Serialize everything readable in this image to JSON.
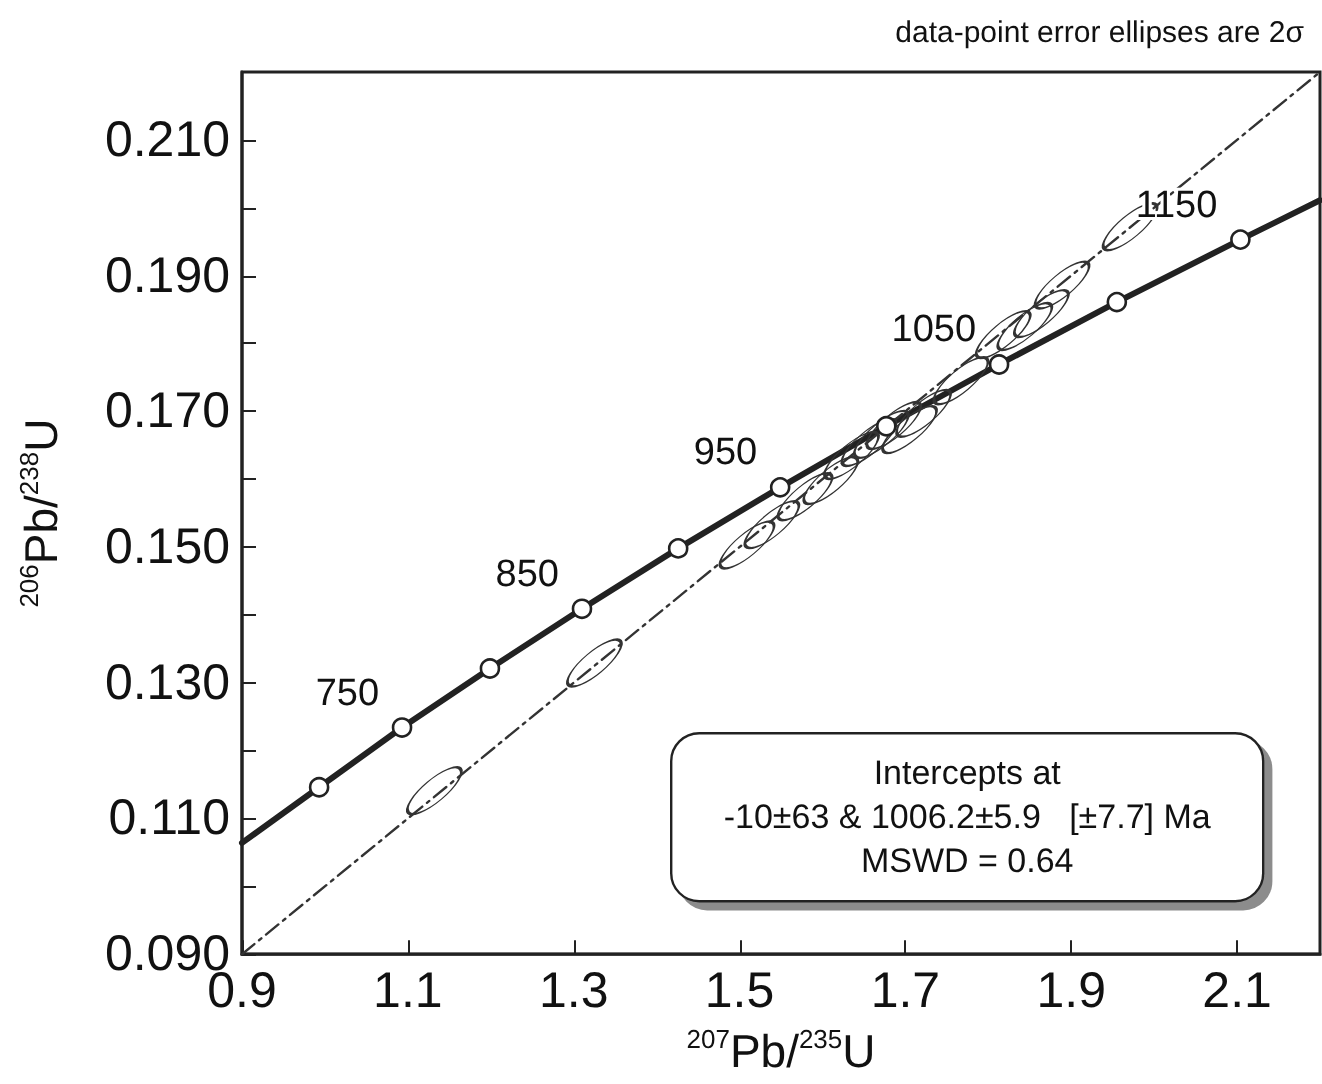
{
  "chart_data": {
    "type": "line",
    "xlabel": "$^{207}$Pb/$^{235}$U",
    "ylabel": "$^{206}$Pb/$^{238}$U",
    "annotations": [
      "data-point error ellipses are 2σ",
      "Intercepts at\n-10±63 & 1006.2±5.9   [±7.7] Ma\nMSWD = 0.64",
      {
        "text": "750",
        "x": 1.093,
        "y": 0.1234
      },
      {
        "text": "850",
        "x": 1.31,
        "y": 0.1409
      },
      {
        "text": "950",
        "x": 1.549,
        "y": 0.1588
      },
      {
        "text": "1050",
        "x": 1.813,
        "y": 0.1769
      },
      {
        "text": "1150",
        "x": 2.104,
        "y": 0.1953
      }
    ],
    "xlim": [
      0.9,
      2.2
    ],
    "xticks": [
      0.9,
      1.1,
      1.3,
      1.5,
      1.7,
      1.9,
      2.1
    ],
    "ylim": [
      0.09,
      0.22
    ],
    "yticks": [
      {
        "value": 0.09,
        "label": "0.090"
      },
      {
        "value": 0.1,
        "label": null
      },
      {
        "value": 0.11,
        "label": "0.110"
      },
      {
        "value": 0.12,
        "label": null
      },
      {
        "value": 0.13,
        "label": "0.130"
      },
      {
        "value": 0.14,
        "label": null
      },
      {
        "value": 0.15,
        "label": "0.150"
      },
      {
        "value": 0.16,
        "label": null
      },
      {
        "value": 0.17,
        "label": "0.170"
      },
      {
        "value": 0.18,
        "label": null
      },
      {
        "value": 0.19,
        "label": "0.190"
      },
      {
        "value": 0.2,
        "label": null
      },
      {
        "value": 0.21,
        "label": "0.210"
      }
    ],
    "grid": false,
    "series": [
      {
        "color": "#222222",
        "marker": "none",
        "line_style": "solid",
        "x": [
          0.9,
          0.993,
          1.093,
          1.199,
          1.31,
          1.426,
          1.549,
          1.677,
          1.813,
          1.955,
          2.104,
          2.2
        ],
        "values": [
          0.1064,
          0.1146,
          0.1234,
          0.1321,
          0.1409,
          0.1498,
          0.1588,
          0.1678,
          0.1769,
          0.1861,
          0.1953,
          0.2011
        ]
      },
      {
        "color": "#333333",
        "marker": "none",
        "line_style": "dashed",
        "x": [
          0.9,
          2.2
        ],
        "values": [
          0.09,
          0.22
        ]
      },
      {
        "type": "scatter",
        "color": "#333333",
        "marker": "circle",
        "x": [
          1.132,
          1.325,
          1.509,
          1.539,
          1.579,
          1.61,
          1.635,
          1.656,
          1.671,
          1.686,
          1.705,
          1.722,
          1.767,
          1.818,
          1.844,
          1.864,
          1.889,
          1.971
        ],
        "values": [
          0.1141,
          0.1329,
          0.1503,
          0.1533,
          0.1574,
          0.1598,
          0.1635,
          0.1654,
          0.1666,
          0.1679,
          0.1673,
          0.1697,
          0.1745,
          0.1813,
          0.1825,
          0.1844,
          0.1886,
          0.1972
        ]
      },
      {
        "type": "scatter",
        "color": "#222222",
        "marker": "circle",
        "x": [
          0.993,
          1.093,
          1.199,
          1.31,
          1.426,
          1.549,
          1.677,
          1.813,
          1.955,
          2.104
        ],
        "values": [
          0.1146,
          0.1234,
          0.1321,
          0.1409,
          0.1498,
          0.1588,
          0.1678,
          0.1769,
          0.1861,
          0.1953
        ]
      }
    ]
  }
}
